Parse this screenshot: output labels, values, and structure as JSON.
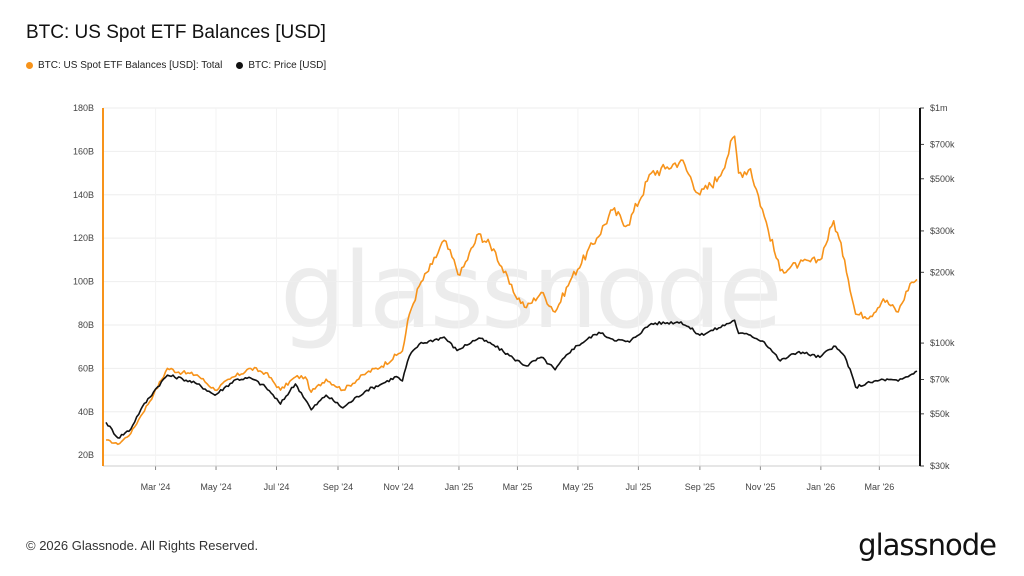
{
  "title": "BTC: US Spot ETF Balances [USD]",
  "legend": [
    {
      "label": "BTC: US Spot ETF Balances [USD]: Total",
      "color": "#f7931a"
    },
    {
      "label": "BTC: Price [USD]",
      "color": "#111111"
    }
  ],
  "watermark": "glassnode",
  "footer": "© 2026 Glassnode. All Rights Reserved.",
  "brand": "glassnode",
  "chart_data": {
    "type": "line",
    "grid": true,
    "x_ticks": [
      "Mar '24",
      "May '24",
      "Jul '24",
      "Sep '24",
      "Nov '24",
      "Jan '25",
      "Mar '25",
      "May '25",
      "Jul '25",
      "Sep '25",
      "Nov '25",
      "Jan '26",
      "Mar '26"
    ],
    "x_start": "Jan '24",
    "x_end": "Apr '26",
    "y_left": {
      "ticks": [
        "20B",
        "40B",
        "60B",
        "80B",
        "100B",
        "120B",
        "140B",
        "160B",
        "180B"
      ],
      "values": [
        20,
        40,
        60,
        80,
        100,
        120,
        140,
        160,
        180
      ],
      "ylim": [
        15,
        180
      ],
      "unit": "B USD"
    },
    "y_right": {
      "ticks": [
        "$30k",
        "$50k",
        "$70k",
        "$100k",
        "$200k",
        "$300k",
        "$500k",
        "$700k",
        "$1m"
      ],
      "values": [
        30000,
        50000,
        70000,
        100000,
        200000,
        300000,
        500000,
        700000,
        1000000
      ],
      "ylim": [
        30000,
        1000000
      ],
      "scale": "log"
    },
    "series": [
      {
        "name": "BTC: US Spot ETF Balances [USD]: Total",
        "color": "#f7931a",
        "axis": "left",
        "points": [
          [
            "2024-01-11",
            27
          ],
          [
            "2024-01-23",
            25
          ],
          [
            "2024-02-05",
            30
          ],
          [
            "2024-02-15",
            38
          ],
          [
            "2024-02-28",
            48
          ],
          [
            "2024-03-13",
            60
          ],
          [
            "2024-03-28",
            58
          ],
          [
            "2024-04-12",
            57
          ],
          [
            "2024-04-30",
            50
          ],
          [
            "2024-05-15",
            55
          ],
          [
            "2024-06-05",
            60
          ],
          [
            "2024-06-20",
            58
          ],
          [
            "2024-07-05",
            50
          ],
          [
            "2024-07-20",
            56
          ],
          [
            "2024-07-30",
            56
          ],
          [
            "2024-08-05",
            49
          ],
          [
            "2024-08-20",
            55
          ],
          [
            "2024-09-06",
            50
          ],
          [
            "2024-09-30",
            58
          ],
          [
            "2024-10-15",
            61
          ],
          [
            "2024-10-30",
            66
          ],
          [
            "2024-11-05",
            68
          ],
          [
            "2024-11-12",
            85
          ],
          [
            "2024-11-22",
            98
          ],
          [
            "2024-12-05",
            108
          ],
          [
            "2024-12-17",
            119
          ],
          [
            "2025-01-02",
            103
          ],
          [
            "2025-01-21",
            122
          ],
          [
            "2025-02-05",
            115
          ],
          [
            "2025-02-25",
            95
          ],
          [
            "2025-03-10",
            88
          ],
          [
            "2025-03-25",
            95
          ],
          [
            "2025-04-08",
            86
          ],
          [
            "2025-04-25",
            102
          ],
          [
            "2025-05-20",
            120
          ],
          [
            "2025-06-05",
            133
          ],
          [
            "2025-06-20",
            126
          ],
          [
            "2025-07-14",
            150
          ],
          [
            "2025-07-28",
            152
          ],
          [
            "2025-08-13",
            156
          ],
          [
            "2025-09-01",
            140
          ],
          [
            "2025-09-20",
            148
          ],
          [
            "2025-10-06",
            167
          ],
          [
            "2025-10-10",
            150
          ],
          [
            "2025-10-22",
            152
          ],
          [
            "2025-11-05",
            130
          ],
          [
            "2025-11-21",
            105
          ],
          [
            "2025-12-10",
            108
          ],
          [
            "2025-12-31",
            110
          ],
          [
            "2026-01-14",
            128
          ],
          [
            "2026-01-25",
            110
          ],
          [
            "2026-02-05",
            85
          ],
          [
            "2026-02-20",
            84
          ],
          [
            "2026-03-05",
            92
          ],
          [
            "2026-03-20",
            86
          ],
          [
            "2026-04-01",
            99
          ],
          [
            "2026-04-08",
            101
          ]
        ]
      },
      {
        "name": "BTC: Price [USD]",
        "color": "#111111",
        "axis": "right",
        "points": [
          [
            "2024-01-11",
            46000
          ],
          [
            "2024-01-23",
            39500
          ],
          [
            "2024-02-05",
            43000
          ],
          [
            "2024-02-15",
            52000
          ],
          [
            "2024-02-28",
            62000
          ],
          [
            "2024-03-13",
            73000
          ],
          [
            "2024-03-28",
            70500
          ],
          [
            "2024-04-12",
            67000
          ],
          [
            "2024-04-30",
            60000
          ],
          [
            "2024-05-21",
            70000
          ],
          [
            "2024-06-05",
            71000
          ],
          [
            "2024-06-20",
            65000
          ],
          [
            "2024-07-05",
            55000
          ],
          [
            "2024-07-20",
            67000
          ],
          [
            "2024-08-05",
            52000
          ],
          [
            "2024-08-20",
            60000
          ],
          [
            "2024-09-06",
            53000
          ],
          [
            "2024-09-30",
            63000
          ],
          [
            "2024-10-15",
            67000
          ],
          [
            "2024-10-30",
            72000
          ],
          [
            "2024-11-05",
            69000
          ],
          [
            "2024-11-12",
            88000
          ],
          [
            "2024-11-22",
            99000
          ],
          [
            "2024-12-17",
            106000
          ],
          [
            "2024-12-30",
            93000
          ],
          [
            "2025-01-21",
            105000
          ],
          [
            "2025-02-05",
            98000
          ],
          [
            "2025-02-25",
            86000
          ],
          [
            "2025-03-10",
            80000
          ],
          [
            "2025-03-25",
            87000
          ],
          [
            "2025-04-08",
            77000
          ],
          [
            "2025-04-25",
            94000
          ],
          [
            "2025-05-22",
            111000
          ],
          [
            "2025-06-05",
            104000
          ],
          [
            "2025-06-22",
            101000
          ],
          [
            "2025-07-14",
            121000
          ],
          [
            "2025-08-13",
            123000
          ],
          [
            "2025-09-01",
            108000
          ],
          [
            "2025-09-20",
            116000
          ],
          [
            "2025-10-06",
            125000
          ],
          [
            "2025-10-10",
            110000
          ],
          [
            "2025-10-22",
            108000
          ],
          [
            "2025-11-05",
            101000
          ],
          [
            "2025-11-21",
            84000
          ],
          [
            "2025-12-10",
            92000
          ],
          [
            "2025-12-31",
            87000
          ],
          [
            "2026-01-14",
            97000
          ],
          [
            "2026-01-25",
            88000
          ],
          [
            "2026-02-05",
            65000
          ],
          [
            "2026-02-20",
            68000
          ],
          [
            "2026-03-05",
            70000
          ],
          [
            "2026-03-20",
            69000
          ],
          [
            "2026-04-01",
            73000
          ],
          [
            "2026-04-08",
            76000
          ]
        ]
      }
    ]
  }
}
